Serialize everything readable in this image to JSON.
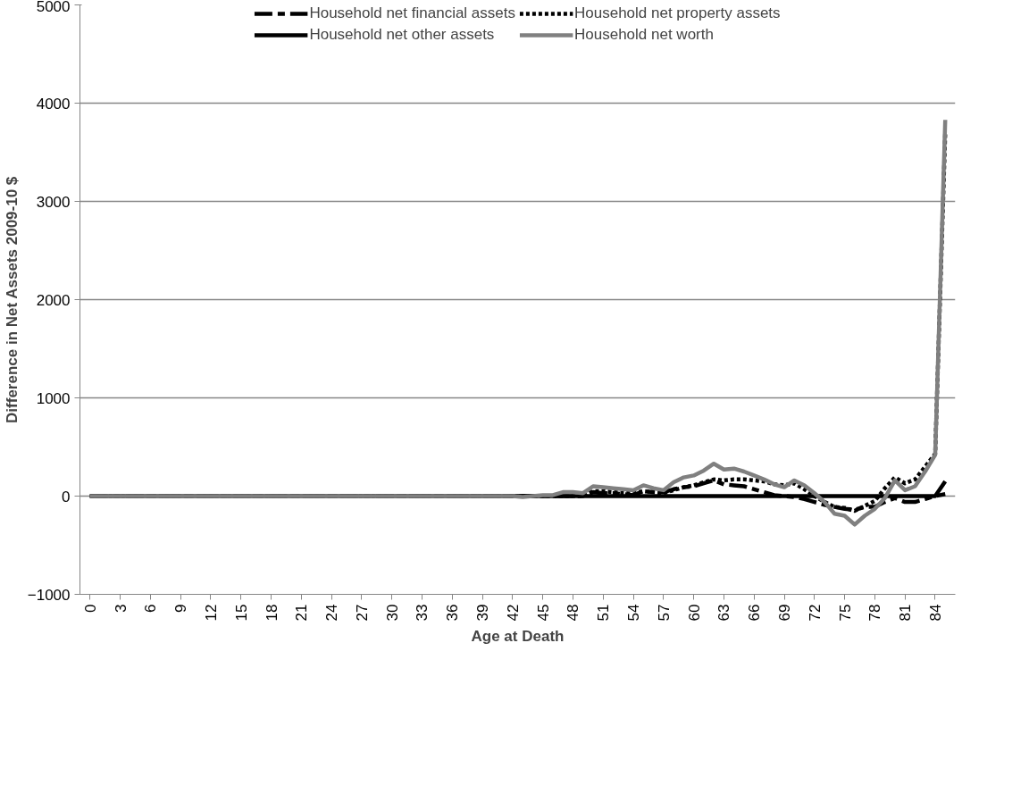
{
  "chart_data": {
    "type": "line",
    "xlabel": "Age at Death",
    "ylabel": "Difference in Net Assets 2009-10 $",
    "categories": [
      "0",
      null,
      null,
      "3",
      null,
      null,
      "6",
      null,
      null,
      "9",
      null,
      null,
      "12",
      null,
      null,
      "15",
      null,
      null,
      "18",
      null,
      null,
      "21",
      null,
      null,
      "24",
      null,
      null,
      "27",
      null,
      null,
      "30",
      null,
      null,
      "33",
      null,
      null,
      "36",
      null,
      null,
      "39",
      null,
      null,
      "42",
      null,
      null,
      "45",
      null,
      null,
      "48",
      null,
      null,
      "51",
      null,
      null,
      "54",
      null,
      null,
      "57",
      null,
      null,
      "60",
      null,
      null,
      "63",
      null,
      null,
      "66",
      null,
      null,
      "69",
      null,
      null,
      "72",
      null,
      null,
      "75",
      null,
      null,
      "78",
      null,
      null,
      "81",
      null,
      null,
      "84",
      null
    ],
    "series": [
      {
        "name": "Household net financial assets",
        "color": "#000000",
        "line_style": "dashed",
        "values": [
          0,
          0,
          0,
          0,
          0,
          0,
          0,
          0,
          0,
          0,
          0,
          0,
          0,
          0,
          0,
          0,
          0,
          0,
          0,
          0,
          0,
          0,
          0,
          0,
          0,
          0,
          0,
          0,
          0,
          0,
          0,
          0,
          0,
          0,
          0,
          0,
          0,
          0,
          0,
          0,
          0,
          0,
          0,
          0,
          0,
          0,
          0,
          0,
          0,
          0,
          40,
          30,
          30,
          20,
          10,
          50,
          40,
          40,
          70,
          90,
          100,
          130,
          160,
          120,
          110,
          100,
          70,
          40,
          10,
          0,
          -10,
          -30,
          -60,
          -90,
          -110,
          -130,
          -140,
          -110,
          -110,
          -60,
          -20,
          -60,
          -60,
          -30,
          0,
          20
        ]
      },
      {
        "name": "Household net property assets",
        "color": "#000000",
        "line_style": "dotted",
        "values": [
          0,
          0,
          0,
          0,
          0,
          0,
          0,
          0,
          0,
          0,
          0,
          0,
          0,
          0,
          0,
          0,
          0,
          0,
          0,
          0,
          0,
          0,
          0,
          0,
          0,
          0,
          0,
          0,
          0,
          0,
          0,
          0,
          0,
          0,
          0,
          0,
          0,
          0,
          0,
          0,
          0,
          0,
          0,
          0,
          0,
          0,
          0,
          0,
          0,
          0,
          50,
          50,
          40,
          30,
          30,
          50,
          40,
          30,
          60,
          90,
          110,
          140,
          170,
          160,
          170,
          170,
          160,
          150,
          120,
          110,
          130,
          70,
          0,
          -60,
          -110,
          -120,
          -150,
          -100,
          -50,
          80,
          190,
          130,
          170,
          300,
          430,
          3700
        ]
      },
      {
        "name": "Household net other assets",
        "color": "#000000",
        "line_style": "solid",
        "values": [
          0,
          0,
          0,
          0,
          0,
          0,
          0,
          0,
          0,
          0,
          0,
          0,
          0,
          0,
          0,
          0,
          0,
          0,
          0,
          0,
          0,
          0,
          0,
          0,
          0,
          0,
          0,
          0,
          0,
          0,
          0,
          0,
          0,
          0,
          0,
          0,
          0,
          0,
          0,
          0,
          0,
          0,
          0,
          0,
          0,
          0,
          0,
          0,
          0,
          0,
          0,
          0,
          0,
          0,
          0,
          0,
          0,
          0,
          0,
          0,
          0,
          0,
          0,
          0,
          0,
          0,
          0,
          0,
          0,
          0,
          0,
          0,
          0,
          0,
          0,
          0,
          0,
          0,
          0,
          0,
          0,
          0,
          0,
          0,
          0,
          150
        ]
      },
      {
        "name": "Household net worth",
        "color": "#808080",
        "line_style": "solid",
        "values": [
          0,
          0,
          0,
          0,
          0,
          0,
          0,
          0,
          0,
          0,
          0,
          0,
          0,
          0,
          0,
          0,
          0,
          0,
          0,
          0,
          0,
          0,
          0,
          0,
          0,
          0,
          0,
          0,
          0,
          0,
          0,
          0,
          0,
          0,
          0,
          0,
          0,
          0,
          0,
          0,
          0,
          0,
          0,
          -10,
          0,
          10,
          10,
          40,
          40,
          30,
          100,
          90,
          80,
          70,
          60,
          110,
          80,
          60,
          140,
          190,
          210,
          260,
          330,
          270,
          280,
          250,
          210,
          170,
          120,
          90,
          160,
          110,
          30,
          -60,
          -180,
          -200,
          -290,
          -200,
          -130,
          -20,
          160,
          60,
          100,
          250,
          420,
          3830
        ]
      }
    ],
    "ylim": [
      -1000,
      5000
    ],
    "yticks": [
      -1000,
      0,
      1000,
      2000,
      3000,
      4000,
      5000
    ],
    "grid": "y",
    "legend": "top",
    "marker": "none"
  }
}
